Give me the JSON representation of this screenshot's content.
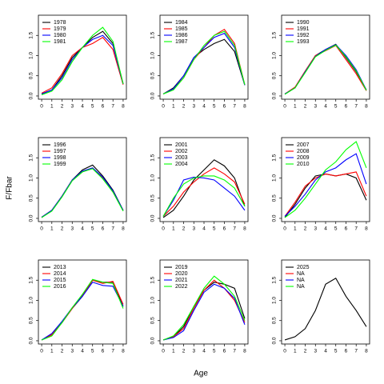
{
  "ylabel": "F/Fbar",
  "xlabel": "Age",
  "chart_data": [
    {
      "type": "line",
      "x": [
        0,
        1,
        2,
        3,
        4,
        5,
        6,
        7,
        8
      ],
      "xlim": [
        -0.32,
        8.32
      ],
      "xticks": [
        0,
        1,
        2,
        3,
        4,
        5,
        6,
        7,
        8
      ],
      "ylim": [
        -0.08,
        2.0
      ],
      "yticks": [
        {
          "value": 0,
          "label": "0.0"
        },
        0.5,
        {
          "value": 1,
          "label": "1.0"
        },
        1.5
      ],
      "series": [
        {
          "name": "1978",
          "color": "#000000",
          "values": [
            0.05,
            0.15,
            0.5,
            0.95,
            1.2,
            1.45,
            1.6,
            1.3,
            0.3
          ]
        },
        {
          "name": "1979",
          "color": "#ff0000",
          "values": [
            0.07,
            0.2,
            0.55,
            1.0,
            1.2,
            1.3,
            1.45,
            1.15,
            0.28
          ]
        },
        {
          "name": "1980",
          "color": "#0000ff",
          "values": [
            0.05,
            0.15,
            0.45,
            0.9,
            1.2,
            1.4,
            1.5,
            1.25,
            0.3
          ]
        },
        {
          "name": "1981",
          "color": "#00ff00",
          "values": [
            0.03,
            0.12,
            0.4,
            0.85,
            1.2,
            1.5,
            1.7,
            1.35,
            0.3
          ]
        }
      ]
    },
    {
      "type": "line",
      "x": [
        0,
        1,
        2,
        3,
        4,
        5,
        6,
        7,
        8
      ],
      "xlim": [
        -0.32,
        8.32
      ],
      "xticks": [
        0,
        1,
        2,
        3,
        4,
        5,
        6,
        7,
        8
      ],
      "ylim": [
        -0.08,
        2.0
      ],
      "yticks": [
        {
          "value": 0,
          "label": "0.0"
        },
        0.5,
        {
          "value": 1,
          "label": "1.0"
        },
        1.5
      ],
      "series": [
        {
          "name": "1984",
          "color": "#000000",
          "values": [
            0.05,
            0.2,
            0.5,
            0.95,
            1.15,
            1.3,
            1.4,
            1.1,
            0.27
          ]
        },
        {
          "name": "1985",
          "color": "#ff0000",
          "values": [
            0.05,
            0.18,
            0.45,
            0.9,
            1.2,
            1.5,
            1.65,
            1.3,
            0.28
          ]
        },
        {
          "name": "1986",
          "color": "#0000ff",
          "values": [
            0.05,
            0.18,
            0.5,
            0.95,
            1.2,
            1.45,
            1.55,
            1.2,
            0.27
          ]
        },
        {
          "name": "1987",
          "color": "#00ff00",
          "values": [
            0.05,
            0.15,
            0.45,
            0.9,
            1.25,
            1.5,
            1.6,
            1.25,
            0.28
          ]
        }
      ]
    },
    {
      "type": "line",
      "x": [
        0,
        1,
        2,
        3,
        4,
        5,
        6,
        7,
        8
      ],
      "xlim": [
        -0.32,
        8.32
      ],
      "xticks": [
        0,
        1,
        2,
        3,
        4,
        5,
        6,
        7,
        8
      ],
      "ylim": [
        -0.08,
        2.0
      ],
      "yticks": [
        {
          "value": 0,
          "label": "0.0"
        },
        0.5,
        {
          "value": 1,
          "label": "1.0"
        },
        1.5
      ],
      "series": [
        {
          "name": "1990",
          "color": "#000000",
          "values": [
            0.05,
            0.2,
            0.6,
            1.0,
            1.15,
            1.28,
            0.95,
            0.6,
            0.15
          ]
        },
        {
          "name": "1991",
          "color": "#ff0000",
          "values": [
            0.05,
            0.22,
            0.62,
            1.0,
            1.12,
            1.25,
            0.9,
            0.55,
            0.13
          ]
        },
        {
          "name": "1992",
          "color": "#0000ff",
          "values": [
            0.05,
            0.2,
            0.6,
            0.98,
            1.15,
            1.27,
            1.0,
            0.65,
            0.15
          ]
        },
        {
          "name": "1993",
          "color": "#00ff00",
          "values": [
            0.04,
            0.2,
            0.58,
            0.97,
            1.13,
            1.26,
            0.97,
            0.62,
            0.14
          ]
        }
      ]
    },
    {
      "type": "line",
      "x": [
        0,
        1,
        2,
        3,
        4,
        5,
        6,
        7,
        8
      ],
      "xlim": [
        -0.32,
        8.32
      ],
      "xticks": [
        0,
        1,
        2,
        3,
        4,
        5,
        6,
        7,
        8
      ],
      "ylim": [
        -0.08,
        2.0
      ],
      "yticks": [
        {
          "value": 0,
          "label": "0.0"
        },
        0.5,
        {
          "value": 1,
          "label": "1.0"
        },
        1.5
      ],
      "series": [
        {
          "name": "1996",
          "color": "#000000",
          "values": [
            0.02,
            0.2,
            0.55,
            0.95,
            1.2,
            1.32,
            1.05,
            0.7,
            0.2
          ]
        },
        {
          "name": "1997",
          "color": "#ff0000",
          "values": [
            0.03,
            0.2,
            0.55,
            0.95,
            1.15,
            1.25,
            1.0,
            0.65,
            0.2
          ]
        },
        {
          "name": "1998",
          "color": "#0000ff",
          "values": [
            0.03,
            0.2,
            0.55,
            0.95,
            1.17,
            1.25,
            1.02,
            0.68,
            0.2
          ]
        },
        {
          "name": "1999",
          "color": "#00ff00",
          "values": [
            0.02,
            0.18,
            0.53,
            0.93,
            1.15,
            1.23,
            0.98,
            0.65,
            0.18
          ]
        }
      ]
    },
    {
      "type": "line",
      "x": [
        0,
        1,
        2,
        3,
        4,
        5,
        6,
        7,
        8
      ],
      "xlim": [
        -0.32,
        8.32
      ],
      "xticks": [
        0,
        1,
        2,
        3,
        4,
        5,
        6,
        7,
        8
      ],
      "ylim": [
        -0.08,
        2.0
      ],
      "yticks": [
        {
          "value": 0,
          "label": "0.0"
        },
        0.5,
        {
          "value": 1,
          "label": "1.0"
        },
        1.5
      ],
      "series": [
        {
          "name": "2001",
          "color": "#000000",
          "values": [
            0.02,
            0.2,
            0.55,
            0.95,
            1.2,
            1.45,
            1.3,
            1.0,
            0.3
          ]
        },
        {
          "name": "2002",
          "color": "#ff0000",
          "values": [
            0.05,
            0.3,
            0.65,
            0.9,
            1.1,
            1.25,
            1.1,
            0.9,
            0.35
          ]
        },
        {
          "name": "2003",
          "color": "#0000ff",
          "values": [
            0.05,
            0.45,
            0.95,
            1.02,
            1.0,
            0.95,
            0.75,
            0.55,
            0.2
          ]
        },
        {
          "name": "2004",
          "color": "#00ff00",
          "values": [
            0.05,
            0.5,
            0.85,
            1.0,
            1.05,
            1.05,
            0.95,
            0.75,
            0.3
          ]
        }
      ]
    },
    {
      "type": "line",
      "x": [
        0,
        1,
        2,
        3,
        4,
        5,
        6,
        7,
        8
      ],
      "xlim": [
        -0.32,
        8.32
      ],
      "xticks": [
        0,
        1,
        2,
        3,
        4,
        5,
        6,
        7,
        8
      ],
      "ylim": [
        -0.08,
        2.0
      ],
      "yticks": [
        {
          "value": 0,
          "label": "0.0"
        },
        0.5,
        {
          "value": 1,
          "label": "1.0"
        },
        1.5
      ],
      "series": [
        {
          "name": "2007",
          "color": "#000000",
          "values": [
            0.02,
            0.35,
            0.75,
            1.05,
            1.1,
            1.05,
            1.1,
            1.0,
            0.45
          ]
        },
        {
          "name": "2008",
          "color": "#ff0000",
          "values": [
            0.05,
            0.4,
            0.8,
            1.0,
            1.1,
            1.05,
            1.1,
            1.15,
            0.55
          ]
        },
        {
          "name": "2009",
          "color": "#0000ff",
          "values": [
            0.05,
            0.3,
            0.6,
            0.95,
            1.15,
            1.25,
            1.45,
            1.6,
            0.85
          ]
        },
        {
          "name": "2010",
          "color": "#00ff00",
          "values": [
            0.02,
            0.2,
            0.5,
            0.85,
            1.2,
            1.4,
            1.7,
            1.9,
            1.25
          ]
        }
      ]
    },
    {
      "type": "line",
      "x": [
        0,
        1,
        2,
        3,
        4,
        5,
        6,
        7,
        8
      ],
      "xlim": [
        -0.32,
        8.32
      ],
      "xticks": [
        0,
        1,
        2,
        3,
        4,
        5,
        6,
        7,
        8
      ],
      "ylim": [
        -0.08,
        2.0
      ],
      "yticks": [
        {
          "value": 0,
          "label": "0.0"
        },
        0.5,
        {
          "value": 1,
          "label": "1.0"
        },
        1.5
      ],
      "series": [
        {
          "name": "2013",
          "color": "#000000",
          "values": [
            0.02,
            0.15,
            0.45,
            0.8,
            1.1,
            1.5,
            1.45,
            1.45,
            0.85
          ]
        },
        {
          "name": "2014",
          "color": "#ff0000",
          "values": [
            0.02,
            0.15,
            0.45,
            0.8,
            1.12,
            1.5,
            1.42,
            1.47,
            0.9
          ]
        },
        {
          "name": "2015",
          "color": "#0000ff",
          "values": [
            0.02,
            0.18,
            0.48,
            0.82,
            1.1,
            1.45,
            1.37,
            1.35,
            0.85
          ]
        },
        {
          "name": "2016",
          "color": "#00ff00",
          "values": [
            0.02,
            0.12,
            0.45,
            0.82,
            1.15,
            1.52,
            1.45,
            1.42,
            0.8
          ]
        }
      ]
    },
    {
      "type": "line",
      "x": [
        0,
        1,
        2,
        3,
        4,
        5,
        6,
        7,
        8
      ],
      "xlim": [
        -0.32,
        8.32
      ],
      "xticks": [
        0,
        1,
        2,
        3,
        4,
        5,
        6,
        7,
        8
      ],
      "ylim": [
        -0.08,
        2.0
      ],
      "yticks": [
        {
          "value": 0,
          "label": "0.0"
        },
        0.5,
        {
          "value": 1,
          "label": "1.0"
        },
        1.5
      ],
      "series": [
        {
          "name": "2019",
          "color": "#000000",
          "values": [
            0.02,
            0.1,
            0.35,
            0.85,
            1.25,
            1.45,
            1.4,
            1.3,
            0.55
          ]
        },
        {
          "name": "2020",
          "color": "#ff0000",
          "values": [
            0.02,
            0.1,
            0.3,
            0.8,
            1.25,
            1.5,
            1.3,
            1.0,
            0.45
          ]
        },
        {
          "name": "2021",
          "color": "#0000ff",
          "values": [
            0.02,
            0.08,
            0.25,
            0.75,
            1.2,
            1.4,
            1.3,
            1.05,
            0.4
          ]
        },
        {
          "name": "2022",
          "color": "#00ff00",
          "values": [
            0.02,
            0.12,
            0.4,
            0.85,
            1.3,
            1.6,
            1.4,
            1.1,
            0.5
          ]
        }
      ]
    },
    {
      "type": "line",
      "x": [
        0,
        1,
        2,
        3,
        4,
        5,
        6,
        7,
        8
      ],
      "xlim": [
        -0.32,
        8.32
      ],
      "xticks": [
        0,
        1,
        2,
        3,
        4,
        5,
        6,
        7,
        8
      ],
      "ylim": [
        -0.08,
        2.0
      ],
      "yticks": [
        {
          "value": 0,
          "label": "0.0"
        },
        0.5,
        {
          "value": 1,
          "label": "1.0"
        },
        1.5
      ],
      "series": [
        {
          "name": "2025",
          "color": "#000000",
          "values": [
            0.02,
            0.1,
            0.3,
            0.75,
            1.4,
            1.55,
            1.1,
            0.75,
            0.35
          ]
        },
        {
          "name": "NA",
          "color": "#ff0000",
          "values": [
            null,
            null,
            null,
            null,
            null,
            null,
            null,
            null,
            null
          ]
        },
        {
          "name": "NA",
          "color": "#0000ff",
          "values": [
            null,
            null,
            null,
            null,
            null,
            null,
            null,
            null,
            null
          ]
        },
        {
          "name": "NA",
          "color": "#00ff00",
          "values": [
            null,
            null,
            null,
            null,
            null,
            null,
            null,
            null,
            null
          ]
        }
      ]
    }
  ]
}
